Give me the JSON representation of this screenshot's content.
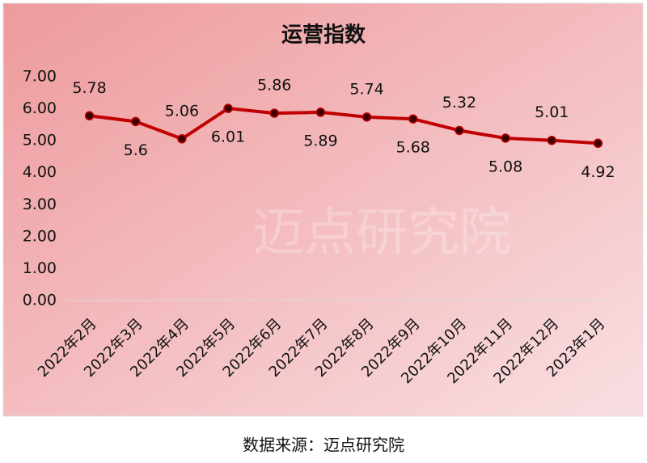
{
  "chart_data": {
    "type": "line",
    "title": "运营指数",
    "categories": [
      "2022年2月",
      "2022年3月",
      "2022年4月",
      "2022年5月",
      "2022年6月",
      "2022年7月",
      "2022年8月",
      "2022年9月",
      "2022年10月",
      "2022年11月",
      "2022年12月",
      "2023年1月"
    ],
    "series": [
      {
        "name": "运营指数",
        "color": "#c00000",
        "values": [
          5.78,
          5.6,
          5.06,
          6.01,
          5.86,
          5.89,
          5.74,
          5.68,
          5.32,
          5.08,
          5.01,
          4.92
        ]
      }
    ],
    "ylim": [
      0,
      7
    ],
    "yticks": [
      {
        "value": 0,
        "label": "0.00"
      },
      {
        "value": 1,
        "label": "1.00"
      },
      {
        "value": 2,
        "label": "2.00"
      },
      {
        "value": 3,
        "label": "3.00"
      },
      {
        "value": 4,
        "label": "4.00"
      },
      {
        "value": 5,
        "label": "5.00"
      },
      {
        "value": 6,
        "label": "6.00"
      },
      {
        "value": 7,
        "label": "7.00"
      }
    ],
    "grid": false,
    "watermark": "迈点研究院",
    "source": "数据来源：迈点研究院"
  }
}
